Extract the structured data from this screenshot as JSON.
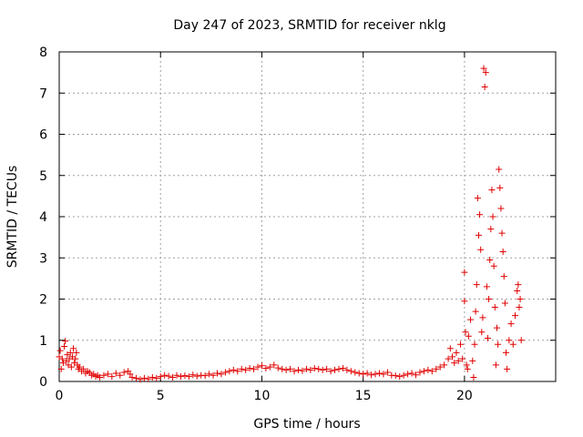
{
  "chart_data": {
    "type": "scatter",
    "title": "Day 247 of 2023, SRMTID for receiver nklg",
    "xlabel": "GPS time / hours",
    "ylabel": "SRMTID / TECUs",
    "xlim": [
      0,
      24.5
    ],
    "ylim": [
      0,
      8
    ],
    "x_ticks": [
      0,
      5,
      10,
      15,
      20
    ],
    "y_ticks": [
      0,
      1,
      2,
      3,
      4,
      5,
      6,
      7,
      8
    ],
    "grid": true,
    "marker": "+",
    "series": [
      {
        "name": "SRMTID",
        "color": "#e00000",
        "points": [
          [
            0.0,
            0.6
          ],
          [
            0.05,
            0.75
          ],
          [
            0.1,
            0.3
          ],
          [
            0.15,
            0.55
          ],
          [
            0.2,
            0.45
          ],
          [
            0.25,
            0.85
          ],
          [
            0.3,
            0.98
          ],
          [
            0.35,
            0.5
          ],
          [
            0.4,
            0.65
          ],
          [
            0.45,
            0.4
          ],
          [
            0.5,
            0.55
          ],
          [
            0.55,
            0.7
          ],
          [
            0.6,
            0.35
          ],
          [
            0.65,
            0.6
          ],
          [
            0.7,
            0.8
          ],
          [
            0.75,
            0.45
          ],
          [
            0.8,
            0.55
          ],
          [
            0.85,
            0.7
          ],
          [
            0.9,
            0.4
          ],
          [
            0.95,
            0.3
          ],
          [
            1.0,
            0.35
          ],
          [
            1.1,
            0.25
          ],
          [
            1.2,
            0.3
          ],
          [
            1.3,
            0.2
          ],
          [
            1.4,
            0.25
          ],
          [
            1.5,
            0.22
          ],
          [
            1.6,
            0.15
          ],
          [
            1.7,
            0.18
          ],
          [
            1.8,
            0.12
          ],
          [
            1.9,
            0.15
          ],
          [
            2.0,
            0.1
          ],
          [
            2.2,
            0.15
          ],
          [
            2.4,
            0.18
          ],
          [
            2.6,
            0.12
          ],
          [
            2.8,
            0.2
          ],
          [
            3.0,
            0.15
          ],
          [
            3.2,
            0.22
          ],
          [
            3.4,
            0.25
          ],
          [
            3.5,
            0.18
          ],
          [
            3.6,
            0.1
          ],
          [
            3.8,
            0.08
          ],
          [
            4.0,
            0.05
          ],
          [
            4.2,
            0.08
          ],
          [
            4.4,
            0.06
          ],
          [
            4.6,
            0.1
          ],
          [
            4.8,
            0.08
          ],
          [
            5.0,
            0.12
          ],
          [
            5.2,
            0.15
          ],
          [
            5.4,
            0.13
          ],
          [
            5.6,
            0.1
          ],
          [
            5.8,
            0.15
          ],
          [
            6.0,
            0.12
          ],
          [
            6.2,
            0.14
          ],
          [
            6.4,
            0.12
          ],
          [
            6.6,
            0.16
          ],
          [
            6.8,
            0.13
          ],
          [
            7.0,
            0.15
          ],
          [
            7.2,
            0.14
          ],
          [
            7.4,
            0.18
          ],
          [
            7.6,
            0.15
          ],
          [
            7.8,
            0.2
          ],
          [
            8.0,
            0.18
          ],
          [
            8.2,
            0.22
          ],
          [
            8.4,
            0.25
          ],
          [
            8.6,
            0.28
          ],
          [
            8.8,
            0.25
          ],
          [
            9.0,
            0.3
          ],
          [
            9.2,
            0.28
          ],
          [
            9.4,
            0.32
          ],
          [
            9.6,
            0.3
          ],
          [
            9.8,
            0.35
          ],
          [
            10.0,
            0.38
          ],
          [
            10.2,
            0.32
          ],
          [
            10.4,
            0.35
          ],
          [
            10.6,
            0.4
          ],
          [
            10.8,
            0.33
          ],
          [
            11.0,
            0.3
          ],
          [
            11.2,
            0.28
          ],
          [
            11.4,
            0.3
          ],
          [
            11.6,
            0.25
          ],
          [
            11.8,
            0.28
          ],
          [
            12.0,
            0.26
          ],
          [
            12.2,
            0.3
          ],
          [
            12.4,
            0.28
          ],
          [
            12.6,
            0.32
          ],
          [
            12.8,
            0.3
          ],
          [
            13.0,
            0.28
          ],
          [
            13.2,
            0.3
          ],
          [
            13.4,
            0.25
          ],
          [
            13.6,
            0.28
          ],
          [
            13.8,
            0.3
          ],
          [
            14.0,
            0.32
          ],
          [
            14.2,
            0.28
          ],
          [
            14.4,
            0.25
          ],
          [
            14.6,
            0.22
          ],
          [
            14.8,
            0.2
          ],
          [
            15.0,
            0.18
          ],
          [
            15.2,
            0.2
          ],
          [
            15.4,
            0.16
          ],
          [
            15.6,
            0.18
          ],
          [
            15.8,
            0.2
          ],
          [
            16.0,
            0.18
          ],
          [
            16.2,
            0.22
          ],
          [
            16.4,
            0.15
          ],
          [
            16.6,
            0.14
          ],
          [
            16.8,
            0.12
          ],
          [
            17.0,
            0.15
          ],
          [
            17.2,
            0.18
          ],
          [
            17.4,
            0.2
          ],
          [
            17.6,
            0.16
          ],
          [
            17.8,
            0.22
          ],
          [
            18.0,
            0.25
          ],
          [
            18.2,
            0.28
          ],
          [
            18.4,
            0.25
          ],
          [
            18.6,
            0.3
          ],
          [
            18.8,
            0.35
          ],
          [
            19.0,
            0.4
          ],
          [
            19.2,
            0.55
          ],
          [
            19.3,
            0.8
          ],
          [
            19.4,
            0.6
          ],
          [
            19.5,
            0.45
          ],
          [
            19.6,
            0.7
          ],
          [
            19.7,
            0.5
          ],
          [
            19.8,
            0.9
          ],
          [
            19.9,
            0.55
          ],
          [
            20.0,
            2.65
          ],
          [
            20.0,
            1.95
          ],
          [
            20.05,
            1.2
          ],
          [
            20.1,
            0.4
          ],
          [
            20.15,
            0.3
          ],
          [
            20.2,
            1.1
          ],
          [
            20.3,
            1.5
          ],
          [
            20.4,
            0.5
          ],
          [
            20.45,
            0.1
          ],
          [
            20.5,
            0.9
          ],
          [
            20.55,
            1.7
          ],
          [
            20.6,
            2.35
          ],
          [
            20.65,
            4.45
          ],
          [
            20.7,
            3.55
          ],
          [
            20.75,
            4.05
          ],
          [
            20.8,
            3.2
          ],
          [
            20.85,
            1.2
          ],
          [
            20.9,
            1.55
          ],
          [
            20.95,
            7.6
          ],
          [
            21.0,
            7.15
          ],
          [
            21.05,
            7.5
          ],
          [
            21.1,
            2.3
          ],
          [
            21.15,
            1.05
          ],
          [
            21.2,
            2.0
          ],
          [
            21.25,
            2.95
          ],
          [
            21.3,
            3.7
          ],
          [
            21.35,
            4.65
          ],
          [
            21.4,
            4.0
          ],
          [
            21.45,
            2.8
          ],
          [
            21.5,
            1.8
          ],
          [
            21.55,
            0.4
          ],
          [
            21.6,
            1.3
          ],
          [
            21.65,
            0.9
          ],
          [
            21.7,
            5.15
          ],
          [
            21.75,
            4.7
          ],
          [
            21.8,
            4.2
          ],
          [
            21.85,
            3.6
          ],
          [
            21.9,
            3.15
          ],
          [
            21.95,
            2.55
          ],
          [
            22.0,
            1.9
          ],
          [
            22.05,
            0.7
          ],
          [
            22.1,
            0.3
          ],
          [
            22.2,
            1.0
          ],
          [
            22.3,
            1.4
          ],
          [
            22.4,
            0.9
          ],
          [
            22.5,
            1.6
          ],
          [
            22.6,
            2.2
          ],
          [
            22.65,
            2.35
          ],
          [
            22.7,
            1.8
          ],
          [
            22.75,
            2.0
          ],
          [
            22.8,
            1.0
          ]
        ]
      }
    ]
  }
}
